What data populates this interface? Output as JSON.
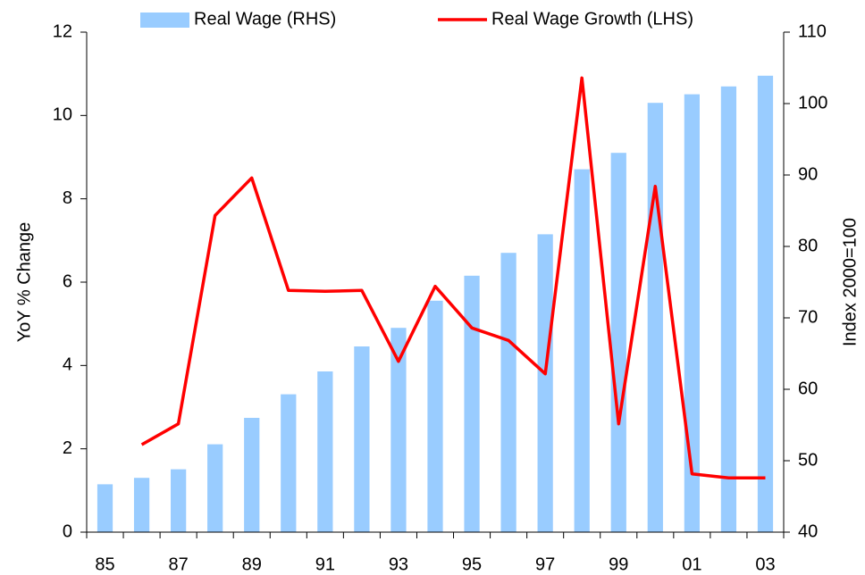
{
  "chart_data": {
    "type": "bar",
    "categories": [
      "85",
      null,
      "87",
      null,
      "89",
      null,
      "91",
      null,
      "93",
      null,
      "95",
      null,
      "97",
      null,
      "99",
      null,
      "01",
      null,
      "03"
    ],
    "series": [
      {
        "name": "Real Wage (RHS)",
        "type": "bar",
        "axis": "y2",
        "color": "#99ccff",
        "values": [
          46.7,
          47.6,
          48.8,
          52.3,
          56.0,
          59.3,
          62.5,
          66.0,
          68.6,
          72.4,
          75.9,
          79.1,
          81.7,
          90.8,
          93.1,
          100.1,
          101.3,
          102.4,
          103.9
        ]
      },
      {
        "name": "Real Wage Growth (LHS)",
        "type": "line",
        "color": "#ff0000",
        "values": [
          null,
          2.1,
          2.6,
          7.6,
          8.5,
          5.8,
          5.78,
          5.8,
          4.1,
          5.9,
          4.9,
          4.6,
          3.8,
          10.9,
          2.6,
          8.3,
          1.4,
          1.3,
          1.3
        ]
      }
    ],
    "y_label": "YoY % Change",
    "y2_label": "Index 2000=100",
    "ylim": [
      0,
      12
    ],
    "yticks": [
      0,
      2,
      4,
      6,
      8,
      10,
      12
    ],
    "y2lim": [
      40,
      110
    ],
    "y2ticks": [
      40,
      50,
      60,
      70,
      80,
      90,
      100,
      110
    ],
    "grid": false,
    "legend": "top"
  }
}
